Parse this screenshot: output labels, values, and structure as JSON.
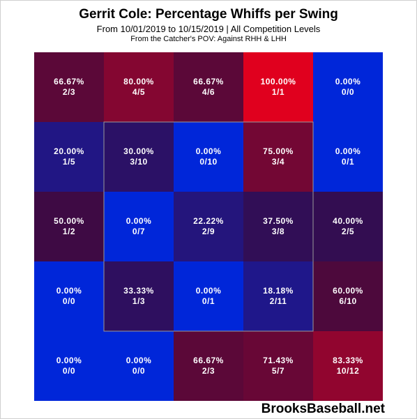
{
  "header": {
    "title": "Gerrit Cole: Percentage Whiffs per Swing",
    "subtitle": "From 10/01/2019 to 10/15/2019 | All Competition Levels",
    "perspective": "From the Catcher's POV:  Against RHH & LHH"
  },
  "watermark": "BrooksBaseball.net",
  "colors": {
    "low": "#0026d9",
    "high": "#e0001e",
    "strike_zone_border": "#9a9a9a",
    "text": "#ffffff"
  },
  "chart_data": {
    "type": "heatmap",
    "rows": 5,
    "cols": 5,
    "cells": [
      [
        {
          "pct": "66.67%",
          "frac": "2/3",
          "value": 66.67
        },
        {
          "pct": "80.00%",
          "frac": "4/5",
          "value": 80.0
        },
        {
          "pct": "66.67%",
          "frac": "4/6",
          "value": 66.67
        },
        {
          "pct": "100.00%",
          "frac": "1/1",
          "value": 100.0
        },
        {
          "pct": "0.00%",
          "frac": "0/0",
          "value": 0.0
        }
      ],
      [
        {
          "pct": "20.00%",
          "frac": "1/5",
          "value": 20.0
        },
        {
          "pct": "30.00%",
          "frac": "3/10",
          "value": 30.0
        },
        {
          "pct": "0.00%",
          "frac": "0/10",
          "value": 0.0
        },
        {
          "pct": "75.00%",
          "frac": "3/4",
          "value": 75.0
        },
        {
          "pct": "0.00%",
          "frac": "0/1",
          "value": 0.0
        }
      ],
      [
        {
          "pct": "50.00%",
          "frac": "1/2",
          "value": 50.0
        },
        {
          "pct": "0.00%",
          "frac": "0/7",
          "value": 0.0
        },
        {
          "pct": "22.22%",
          "frac": "2/9",
          "value": 22.22
        },
        {
          "pct": "37.50%",
          "frac": "3/8",
          "value": 37.5
        },
        {
          "pct": "40.00%",
          "frac": "2/5",
          "value": 40.0
        }
      ],
      [
        {
          "pct": "0.00%",
          "frac": "0/0",
          "value": 0.0
        },
        {
          "pct": "33.33%",
          "frac": "1/3",
          "value": 33.33
        },
        {
          "pct": "0.00%",
          "frac": "0/1",
          "value": 0.0
        },
        {
          "pct": "18.18%",
          "frac": "2/11",
          "value": 18.18
        },
        {
          "pct": "60.00%",
          "frac": "6/10",
          "value": 60.0
        }
      ],
      [
        {
          "pct": "0.00%",
          "frac": "0/0",
          "value": 0.0
        },
        {
          "pct": "0.00%",
          "frac": "0/0",
          "value": 0.0
        },
        {
          "pct": "66.67%",
          "frac": "2/3",
          "value": 66.67
        },
        {
          "pct": "71.43%",
          "frac": "5/7",
          "value": 71.43
        },
        {
          "pct": "83.33%",
          "frac": "10/12",
          "value": 83.33
        }
      ]
    ],
    "strike_zone": {
      "rows": [
        1,
        3
      ],
      "cols": [
        1,
        3
      ]
    }
  }
}
